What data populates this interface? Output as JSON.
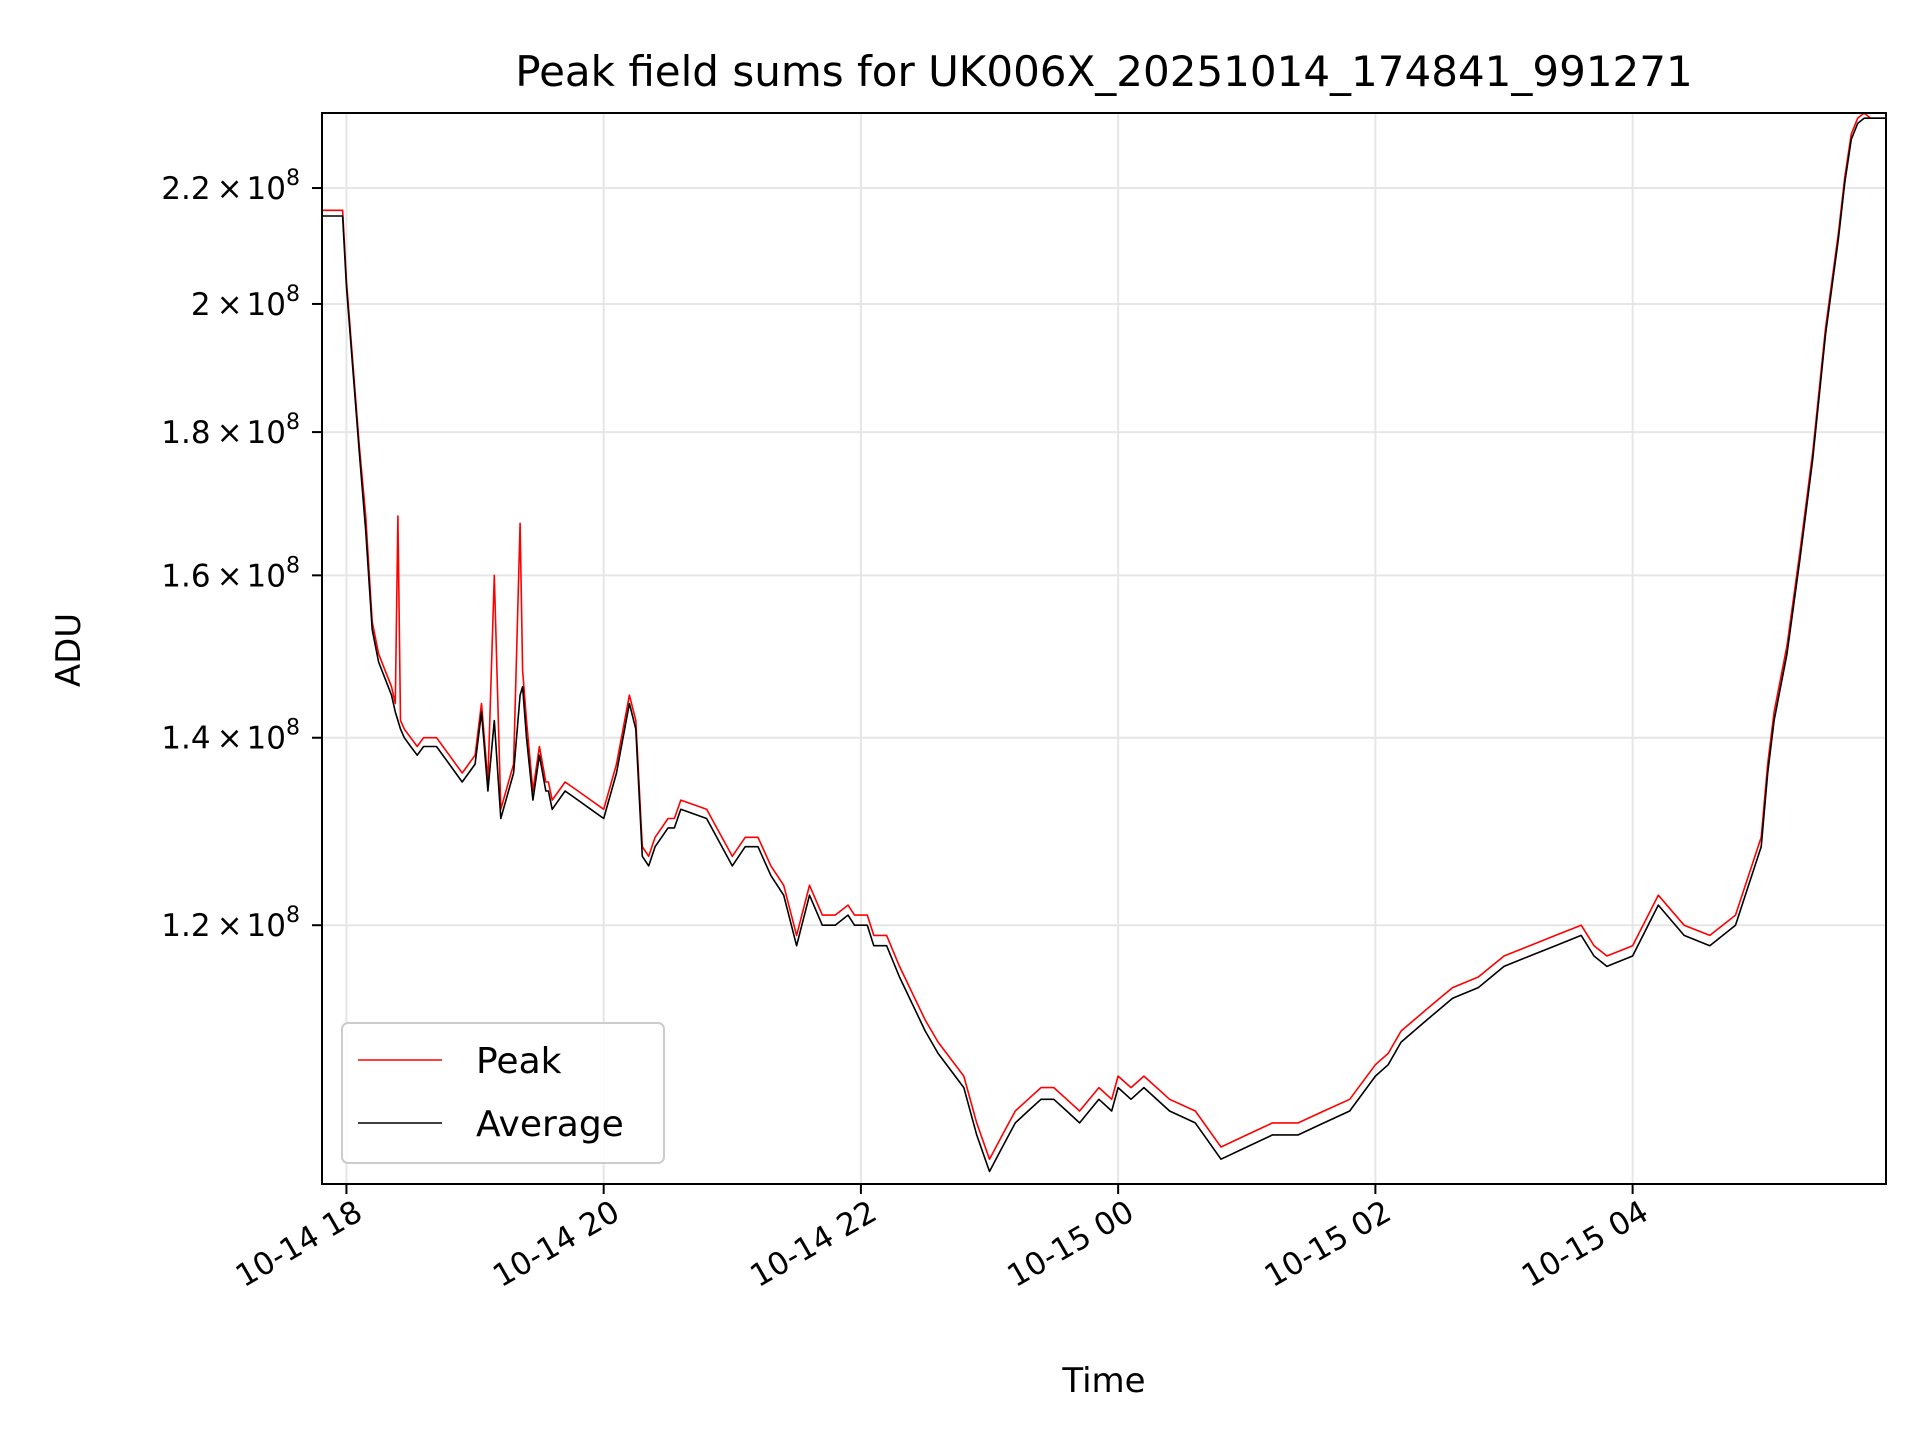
{
  "chart_data": {
    "type": "line",
    "title": "Peak field sums for UK006X_20251014_174841_991271",
    "xlabel": "Time",
    "ylabel": "ADU",
    "x_tick_labels": [
      "10-14 18",
      "10-14 20",
      "10-14 22",
      "10-15 00",
      "10-15 02",
      "10-15 04"
    ],
    "x_ticks_hours": [
      18,
      20,
      22,
      24,
      26,
      28
    ],
    "xlim_hours": [
      17.81,
      29.97
    ],
    "y_scale": "log",
    "ylim": [
      97000000,
      234000000
    ],
    "y_ticks": [
      {
        "value": 120000000,
        "mantissa": "1.2",
        "exponent": "8"
      },
      {
        "value": 140000000,
        "mantissa": "1.4",
        "exponent": "8"
      },
      {
        "value": 160000000,
        "mantissa": "1.6",
        "exponent": "8"
      },
      {
        "value": 180000000,
        "mantissa": "1.8",
        "exponent": "8"
      },
      {
        "value": 200000000,
        "mantissa": "2",
        "exponent": "8"
      },
      {
        "value": 220000000,
        "mantissa": "2.2",
        "exponent": "8"
      }
    ],
    "times_symbol": "×",
    "grid": true,
    "legend_position": "lower-left",
    "series": [
      {
        "name": "Peak",
        "color": "#ff0000",
        "x_hours": [
          17.81,
          17.97,
          18.0,
          18.1,
          18.15,
          18.2,
          18.25,
          18.3,
          18.35,
          18.38,
          18.4,
          18.42,
          18.45,
          18.5,
          18.55,
          18.6,
          18.7,
          18.8,
          18.9,
          19.0,
          19.05,
          19.1,
          19.15,
          19.2,
          19.3,
          19.35,
          19.37,
          19.4,
          19.45,
          19.5,
          19.55,
          19.57,
          19.6,
          19.65,
          19.7,
          19.8,
          19.9,
          20.0,
          20.1,
          20.2,
          20.25,
          20.3,
          20.35,
          20.4,
          20.45,
          20.5,
          20.55,
          20.6,
          20.8,
          21.0,
          21.1,
          21.2,
          21.3,
          21.4,
          21.5,
          21.6,
          21.7,
          21.8,
          21.9,
          21.95,
          22.0,
          22.05,
          22.1,
          22.2,
          22.3,
          22.5,
          22.6,
          22.8,
          22.9,
          23.0,
          23.1,
          23.2,
          23.3,
          23.4,
          23.5,
          23.6,
          23.7,
          23.85,
          23.95,
          24.0,
          24.1,
          24.2,
          24.4,
          24.6,
          24.8,
          25.0,
          25.2,
          25.4,
          25.6,
          25.8,
          26.0,
          26.1,
          26.2,
          26.3,
          26.4,
          26.5,
          26.6,
          26.8,
          27.0,
          27.2,
          27.4,
          27.6,
          27.7,
          27.8,
          28.0,
          28.2,
          28.4,
          28.6,
          28.8,
          29.0,
          29.05,
          29.1,
          29.2,
          29.3,
          29.4,
          29.5,
          29.6,
          29.65,
          29.7,
          29.75,
          29.8,
          29.85,
          29.9,
          29.97
        ],
        "values": [
          216000000,
          216000000,
          204000000,
          178000000,
          168000000,
          154000000,
          150000000,
          148000000,
          146000000,
          144000000,
          168000000,
          142000000,
          141000000,
          140000000,
          139000000,
          140000000,
          140000000,
          138000000,
          136000000,
          138000000,
          144000000,
          135000000,
          160000000,
          132000000,
          137000000,
          167000000,
          148000000,
          142000000,
          134000000,
          139000000,
          135000000,
          135000000,
          133000000,
          134000000,
          135000000,
          134000000,
          133000000,
          132000000,
          137000000,
          145000000,
          142000000,
          128000000,
          127000000,
          129000000,
          130000000,
          131000000,
          131000000,
          133000000,
          132000000,
          127000000,
          129000000,
          129000000,
          126000000,
          124000000,
          119000000,
          124000000,
          121000000,
          121000000,
          122000000,
          121000000,
          121000000,
          121000000,
          119000000,
          119000000,
          116000000,
          111000000,
          109000000,
          106000000,
          102000000,
          99000000,
          101000000,
          103000000,
          104000000,
          105000000,
          105000000,
          104000000,
          103000000,
          105000000,
          104000000,
          106000000,
          105000000,
          106000000,
          104000000,
          103000000,
          100000000,
          101000000,
          102000000,
          102000000,
          103000000,
          104000000,
          107000000,
          108000000,
          110000000,
          111000000,
          112000000,
          113000000,
          114000000,
          115000000,
          117000000,
          118000000,
          119000000,
          120000000,
          118000000,
          117000000,
          118000000,
          123000000,
          120000000,
          119000000,
          121000000,
          129000000,
          137000000,
          143000000,
          151000000,
          163000000,
          177000000,
          196000000,
          212000000,
          222000000,
          230000000,
          233000000,
          234000000,
          233000000,
          233000000,
          233000000
        ]
      },
      {
        "name": "Average",
        "color": "#000000",
        "x_hours": [
          17.81,
          17.97,
          18.0,
          18.1,
          18.15,
          18.2,
          18.25,
          18.3,
          18.35,
          18.38,
          18.4,
          18.42,
          18.45,
          18.5,
          18.55,
          18.6,
          18.7,
          18.8,
          18.9,
          19.0,
          19.05,
          19.1,
          19.15,
          19.2,
          19.3,
          19.35,
          19.37,
          19.4,
          19.45,
          19.5,
          19.55,
          19.57,
          19.6,
          19.65,
          19.7,
          19.8,
          19.9,
          20.0,
          20.1,
          20.2,
          20.25,
          20.3,
          20.35,
          20.4,
          20.45,
          20.5,
          20.55,
          20.6,
          20.8,
          21.0,
          21.1,
          21.2,
          21.3,
          21.4,
          21.5,
          21.6,
          21.7,
          21.8,
          21.9,
          21.95,
          22.0,
          22.05,
          22.1,
          22.2,
          22.3,
          22.5,
          22.6,
          22.8,
          22.9,
          23.0,
          23.1,
          23.2,
          23.3,
          23.4,
          23.5,
          23.6,
          23.7,
          23.85,
          23.95,
          24.0,
          24.1,
          24.2,
          24.4,
          24.6,
          24.8,
          25.0,
          25.2,
          25.4,
          25.6,
          25.8,
          26.0,
          26.1,
          26.2,
          26.3,
          26.4,
          26.5,
          26.6,
          26.8,
          27.0,
          27.2,
          27.4,
          27.6,
          27.7,
          27.8,
          28.0,
          28.2,
          28.4,
          28.6,
          28.8,
          29.0,
          29.05,
          29.1,
          29.2,
          29.3,
          29.4,
          29.5,
          29.6,
          29.65,
          29.7,
          29.75,
          29.8,
          29.85,
          29.9,
          29.97
        ],
        "values": [
          215000000,
          215000000,
          203000000,
          177000000,
          166000000,
          153000000,
          149000000,
          147000000,
          145000000,
          143000000,
          142000000,
          141000000,
          140000000,
          139000000,
          138000000,
          139000000,
          139000000,
          137000000,
          135000000,
          137000000,
          143000000,
          134000000,
          142000000,
          131000000,
          136000000,
          145000000,
          146000000,
          140000000,
          133000000,
          138000000,
          134000000,
          134000000,
          132000000,
          133000000,
          134000000,
          133000000,
          132000000,
          131000000,
          136000000,
          144000000,
          141000000,
          127000000,
          126000000,
          128000000,
          129000000,
          130000000,
          130000000,
          132000000,
          131000000,
          126000000,
          128000000,
          128000000,
          125000000,
          123000000,
          118000000,
          123000000,
          120000000,
          120000000,
          121000000,
          120000000,
          120000000,
          120000000,
          118000000,
          118000000,
          115000000,
          110000000,
          108000000,
          105000000,
          101000000,
          98000000,
          100000000,
          102000000,
          103000000,
          104000000,
          104000000,
          103000000,
          102000000,
          104000000,
          103000000,
          105000000,
          104000000,
          105000000,
          103000000,
          102000000,
          99000000,
          100000000,
          101000000,
          101000000,
          102000000,
          103000000,
          106000000,
          107000000,
          109000000,
          110000000,
          111000000,
          112000000,
          113000000,
          114000000,
          116000000,
          117000000,
          118000000,
          119000000,
          117000000,
          116000000,
          117000000,
          122000000,
          119000000,
          118000000,
          120000000,
          128000000,
          136000000,
          142000000,
          150000000,
          162000000,
          176000000,
          195000000,
          211000000,
          221000000,
          229000000,
          232000000,
          233000000,
          233000000,
          233000000,
          233000000
        ]
      }
    ]
  }
}
